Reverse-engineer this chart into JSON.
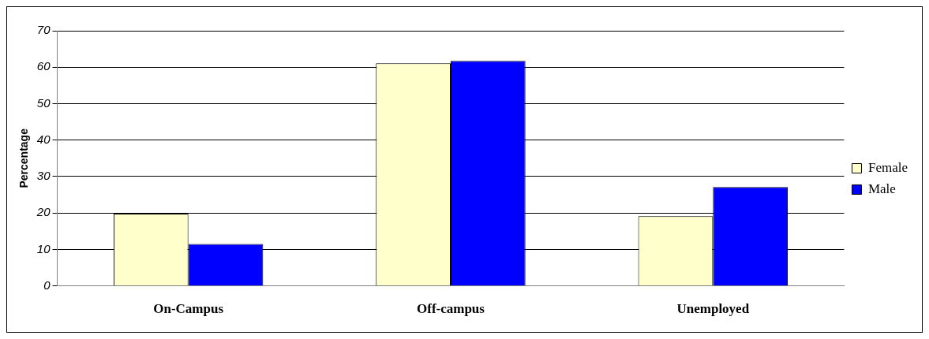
{
  "chart_data": {
    "type": "bar",
    "ylabel": "Percentage",
    "categories": [
      "On-Campus",
      "Off-campus",
      "Unemployed"
    ],
    "series": [
      {
        "name": "Female",
        "color": "#ffffcc",
        "values": [
          19.8,
          61.1,
          19.1
        ]
      },
      {
        "name": "Male",
        "color": "#0000ff",
        "values": [
          11.5,
          61.7,
          27.1
        ]
      }
    ],
    "ylim": [
      0,
      70
    ],
    "yticks": [
      0,
      10,
      20,
      30,
      40,
      50,
      60,
      70
    ],
    "grid": "y",
    "legend": "right"
  }
}
